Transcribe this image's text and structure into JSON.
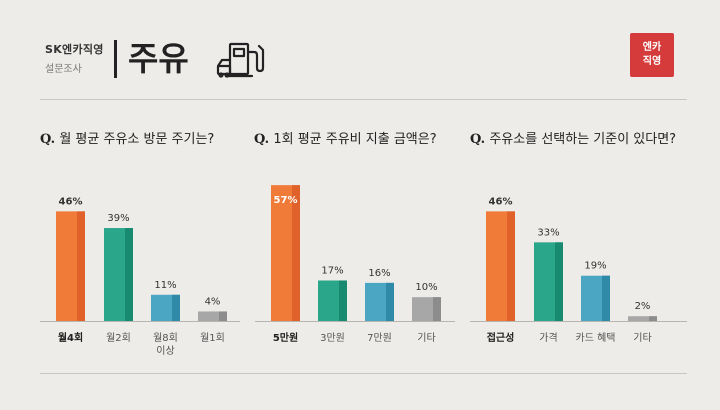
{
  "header": {
    "brand": "SK엔카직영",
    "subtitle": "설문조사",
    "title": "주유",
    "logo_lines": [
      "엔카",
      "직영"
    ],
    "logo_color": "#d63b3b",
    "icon": "fuel-pump-icon"
  },
  "colors": {
    "orange": "#f07a37",
    "orange_dark": "#e0622a",
    "teal": "#2aa68a",
    "teal_dark": "#178a6f",
    "blue": "#4aa6c2",
    "blue_dark": "#2e8aa6",
    "gray": "#a7a7a7",
    "gray_dark": "#8c8c8c"
  },
  "chart_data": [
    {
      "type": "bar",
      "title_prefix": "Q.",
      "title": "월 평균 주유소 방문 주기는?",
      "categories": [
        "월4회",
        "월2회",
        "월8회\n이상",
        "월1회"
      ],
      "values": [
        46,
        39,
        11,
        4
      ],
      "value_labels": [
        "46%",
        "39%",
        "11%",
        "4%"
      ],
      "colors": [
        "orange",
        "teal",
        "blue",
        "gray"
      ],
      "highlight_index": 0,
      "ylim": [
        0,
        60
      ]
    },
    {
      "type": "bar",
      "title_prefix": "Q.",
      "title": "1회 평균 주유비 지출 금액은?",
      "categories": [
        "5만원",
        "3만원",
        "7만원",
        "기타"
      ],
      "values": [
        57,
        17,
        16,
        10
      ],
      "value_labels": [
        "57%",
        "17%",
        "16%",
        "10%"
      ],
      "colors": [
        "orange",
        "teal",
        "blue",
        "gray"
      ],
      "highlight_index": 0,
      "label_inside_index": 0,
      "ylim": [
        0,
        60
      ]
    },
    {
      "type": "bar",
      "title_prefix": "Q.",
      "title": "주유소를 선택하는 기준이 있다면?",
      "categories": [
        "접근성",
        "가격",
        "카드 혜택",
        "기타"
      ],
      "values": [
        46,
        33,
        19,
        2
      ],
      "value_labels": [
        "46%",
        "33%",
        "19%",
        "2%"
      ],
      "colors": [
        "orange",
        "teal",
        "blue",
        "gray"
      ],
      "highlight_index": 0,
      "ylim": [
        0,
        60
      ]
    }
  ]
}
